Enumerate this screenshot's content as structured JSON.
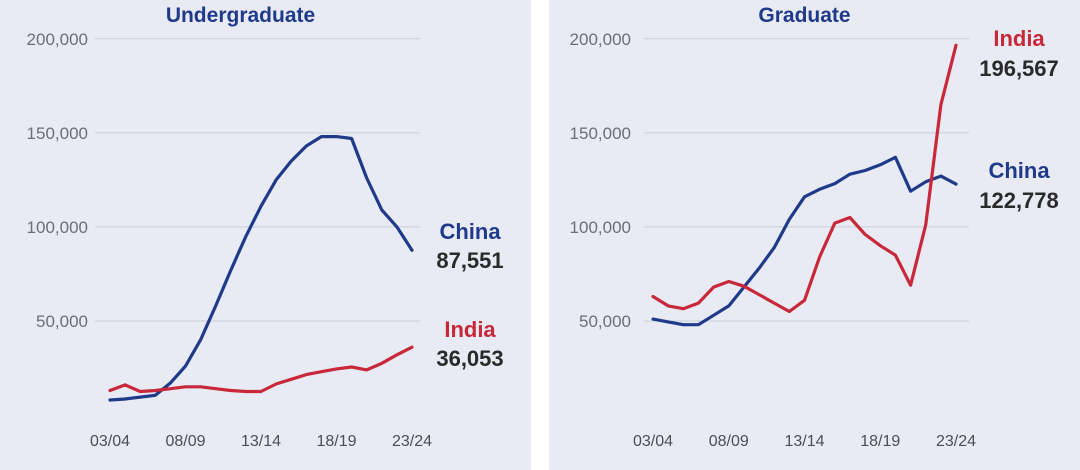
{
  "colors": {
    "china": "#1f3a8a",
    "india": "#c8283a",
    "grid": "#c9ced9",
    "background": "#e8ebf3"
  },
  "chart_data": [
    {
      "type": "line",
      "title": "Undergraduate",
      "x": [
        "03/04",
        "04/05",
        "05/06",
        "06/07",
        "07/08",
        "08/09",
        "09/10",
        "10/11",
        "11/12",
        "12/13",
        "13/14",
        "14/15",
        "15/16",
        "16/17",
        "17/18",
        "18/19",
        "19/20",
        "20/21",
        "21/22",
        "22/23",
        "23/24"
      ],
      "x_tick_labels": [
        "03/04",
        "08/09",
        "13/14",
        "18/19",
        "23/24"
      ],
      "y_tick_labels": [
        "50,000",
        "100,000",
        "150,000",
        "200,000"
      ],
      "ylim": [
        0,
        210000
      ],
      "grid": true,
      "series": [
        {
          "name": "China",
          "end_value": "87,551",
          "color": "#1f3a8a",
          "values": [
            8000,
            8500,
            9500,
            10500,
            17000,
            26000,
            40000,
            58000,
            77000,
            95000,
            111000,
            125000,
            135000,
            143000,
            148000,
            148000,
            147000,
            126000,
            109000,
            100000,
            87551
          ]
        },
        {
          "name": "India",
          "end_value": "36,053",
          "color": "#c8283a",
          "values": [
            13000,
            16000,
            12500,
            13000,
            14000,
            15000,
            15000,
            14000,
            13000,
            12500,
            12500,
            16500,
            19000,
            21500,
            23000,
            24500,
            25500,
            24000,
            27500,
            32000,
            36053
          ]
        }
      ]
    },
    {
      "type": "line",
      "title": "Graduate",
      "x": [
        "03/04",
        "04/05",
        "05/06",
        "06/07",
        "07/08",
        "08/09",
        "09/10",
        "10/11",
        "11/12",
        "12/13",
        "13/14",
        "14/15",
        "15/16",
        "16/17",
        "17/18",
        "18/19",
        "19/20",
        "20/21",
        "21/22",
        "22/23",
        "23/24"
      ],
      "x_tick_labels": [
        "03/04",
        "08/09",
        "13/14",
        "18/19",
        "23/24"
      ],
      "y_tick_labels": [
        "50,000",
        "100,000",
        "150,000",
        "200,000"
      ],
      "ylim": [
        0,
        210000
      ],
      "grid": true,
      "series": [
        {
          "name": "China",
          "end_value": "122,778",
          "color": "#1f3a8a",
          "values": [
            51000,
            49500,
            48000,
            48000,
            53000,
            58000,
            68000,
            78000,
            89000,
            104000,
            116000,
            120000,
            123000,
            128000,
            130000,
            133000,
            137000,
            119000,
            124000,
            127000,
            122778
          ]
        },
        {
          "name": "India",
          "end_value": "196,567",
          "color": "#c8283a",
          "values": [
            63000,
            58000,
            56500,
            59500,
            68000,
            71000,
            68500,
            64000,
            59500,
            55000,
            61000,
            84000,
            102000,
            105000,
            96000,
            90000,
            85000,
            69000,
            101000,
            165000,
            196567
          ]
        }
      ]
    }
  ]
}
